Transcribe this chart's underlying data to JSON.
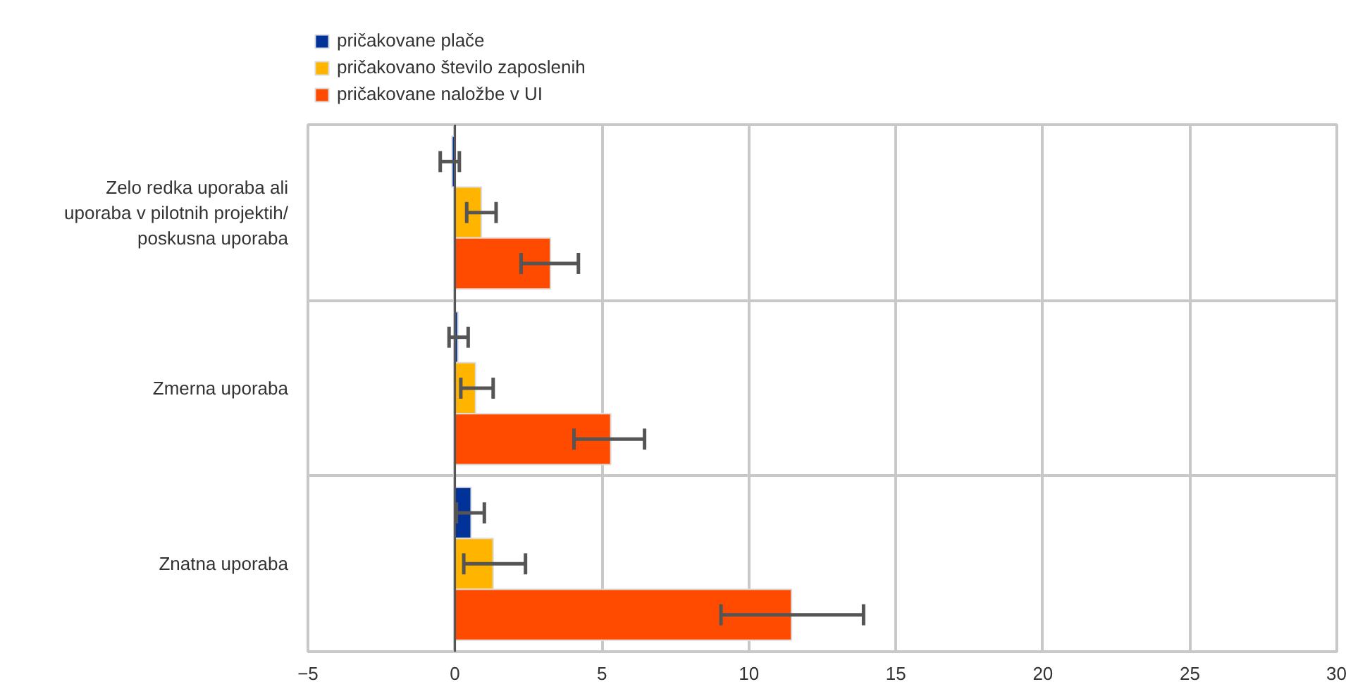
{
  "chart_data": {
    "type": "bar",
    "orientation": "horizontal",
    "categories": [
      "Zelo redka uporaba ali uporaba v pilotnih projektih/ poskusna uporaba",
      "Zmerna uporaba",
      "Znatna uporaba"
    ],
    "series": [
      {
        "name": "pričakovane plače",
        "color": "#003299",
        "values": [
          -0.1,
          0.1,
          0.55
        ],
        "errors": [
          [
            -0.5,
            0.15
          ],
          [
            -0.2,
            0.45
          ],
          [
            0.05,
            1.0
          ]
        ]
      },
      {
        "name": "pričakovano število zaposlenih",
        "color": "#ffb400",
        "values": [
          0.9,
          0.7,
          1.3
        ],
        "errors": [
          [
            0.4,
            1.4
          ],
          [
            0.2,
            1.3
          ],
          [
            0.3,
            2.4
          ]
        ]
      },
      {
        "name": "pričakovane naložbe v UI",
        "color": "#ff4b00",
        "values": [
          3.25,
          5.3,
          11.45
        ],
        "errors": [
          [
            2.25,
            4.2
          ],
          [
            4.05,
            6.45
          ],
          [
            9.05,
            13.9
          ]
        ]
      }
    ],
    "xlim": [
      -5,
      30
    ],
    "xticks": [
      -5,
      0,
      5,
      10,
      15,
      20,
      25,
      30
    ],
    "ref_lines": [
      {
        "axis": "x",
        "value": 0,
        "color": "#555555"
      }
    ],
    "grid": true,
    "legend": "top left"
  }
}
